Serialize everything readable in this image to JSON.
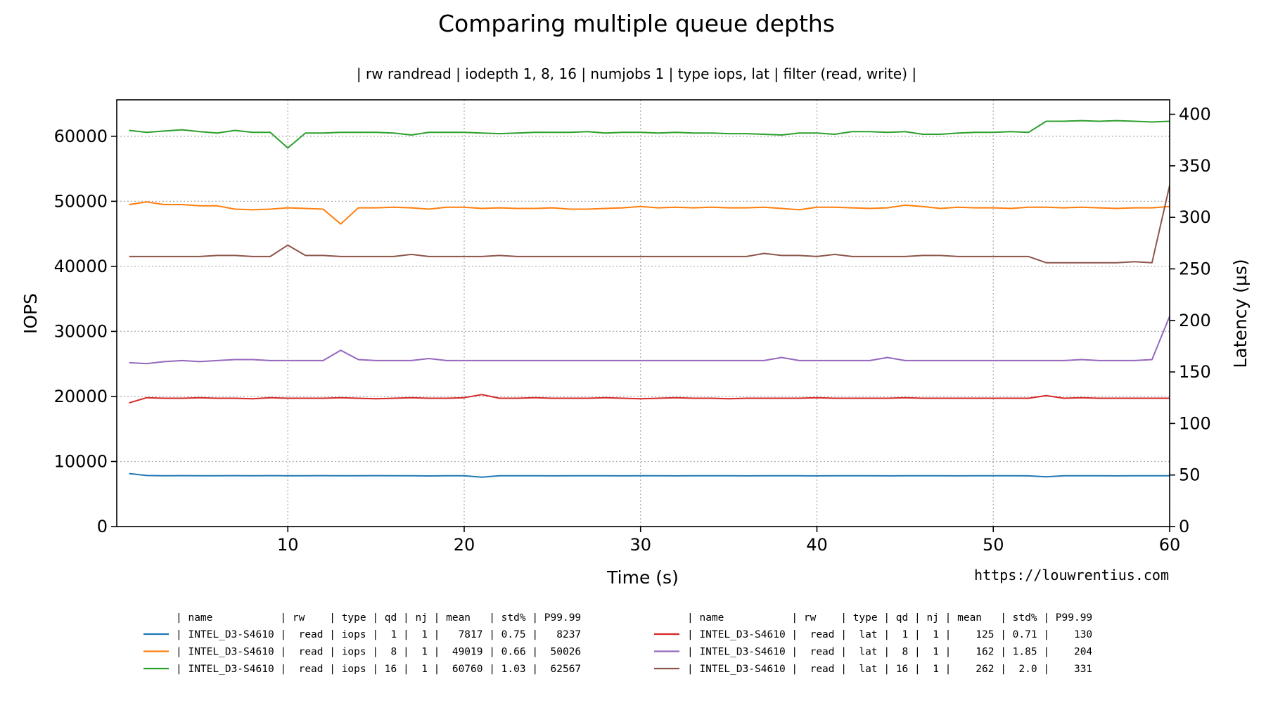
{
  "chart_data": {
    "type": "line",
    "title": "Comparing multiple queue depths",
    "subtitle": "| rw randread | iodepth 1, 8, 16 | numjobs 1 | type iops, lat | filter (read, write) |",
    "xlabel": "Time (s)",
    "ylabel": "IOPS",
    "ylabel_right": "Latency (µs)",
    "watermark": "https://louwrentius.com",
    "xlim": [
      0.3,
      60
    ],
    "ylim": [
      0,
      65600
    ],
    "ylim_right": [
      0,
      414
    ],
    "xticks": [
      "10",
      "20",
      "30",
      "40",
      "50",
      "60"
    ],
    "yticks": [
      "0",
      "10000",
      "20000",
      "30000",
      "40000",
      "50000",
      "60000"
    ],
    "yticks_right": [
      "0",
      "50",
      "100",
      "150",
      "200",
      "250",
      "300",
      "350",
      "400"
    ],
    "grid": true,
    "legend_placement": "bottom",
    "x": [
      1,
      2,
      3,
      4,
      5,
      6,
      7,
      8,
      9,
      10,
      11,
      12,
      13,
      14,
      15,
      16,
      17,
      18,
      19,
      20,
      21,
      22,
      23,
      24,
      25,
      26,
      27,
      28,
      29,
      30,
      31,
      32,
      33,
      34,
      35,
      36,
      37,
      38,
      39,
      40,
      41,
      42,
      43,
      44,
      45,
      46,
      47,
      48,
      49,
      50,
      51,
      52,
      53,
      54,
      55,
      56,
      57,
      58,
      59,
      60
    ],
    "legend_header": "| name           | rw    | type | qd | nj | mean   | std% | P99.99",
    "series": [
      {
        "name": "| INTEL_D3-S4610 |  read | iops |  1 |  1 |   7817 | 0.75 |   8237",
        "axis": "left",
        "color": "#1f77b4",
        "values": [
          8150,
          7850,
          7800,
          7820,
          7800,
          7810,
          7820,
          7800,
          7820,
          7810,
          7800,
          7820,
          7800,
          7810,
          7820,
          7800,
          7810,
          7780,
          7800,
          7810,
          7600,
          7800,
          7810,
          7800,
          7790,
          7800,
          7810,
          7800,
          7790,
          7810,
          7800,
          7790,
          7800,
          7810,
          7800,
          7790,
          7800,
          7810,
          7800,
          7790,
          7800,
          7810,
          7800,
          7790,
          7800,
          7810,
          7800,
          7790,
          7800,
          7810,
          7800,
          7790,
          7650,
          7800,
          7810,
          7800,
          7790,
          7800,
          7810,
          7800
        ]
      },
      {
        "name": "| INTEL_D3-S4610 |  read | iops |  8 |  1 |  49019 | 0.66 |  50026",
        "axis": "left",
        "color": "#ff7f0e",
        "values": [
          49500,
          49900,
          49500,
          49500,
          49300,
          49300,
          48800,
          48700,
          48800,
          49000,
          48900,
          48800,
          46500,
          49000,
          49000,
          49100,
          49000,
          48800,
          49100,
          49100,
          48900,
          49000,
          48900,
          48900,
          49000,
          48800,
          48800,
          48900,
          49000,
          49200,
          49000,
          49100,
          49000,
          49100,
          49000,
          49000,
          49100,
          48900,
          48700,
          49100,
          49100,
          49000,
          48900,
          49000,
          49400,
          49200,
          48900,
          49100,
          49000,
          49000,
          48900,
          49100,
          49100,
          49000,
          49100,
          49000,
          48900,
          49000,
          49000,
          49200
        ]
      },
      {
        "name": "| INTEL_D3-S4610 |  read | iops | 16 |  1 |  60760 | 1.03 |  62567",
        "axis": "left",
        "color": "#2ca02c",
        "values": [
          60900,
          60600,
          60800,
          61000,
          60700,
          60500,
          60900,
          60600,
          60600,
          58200,
          60500,
          60500,
          60600,
          60600,
          60600,
          60500,
          60200,
          60600,
          60600,
          60600,
          60500,
          60400,
          60500,
          60600,
          60600,
          60600,
          60700,
          60500,
          60600,
          60600,
          60500,
          60600,
          60500,
          60500,
          60400,
          60400,
          60300,
          60200,
          60500,
          60500,
          60300,
          60700,
          60700,
          60600,
          60700,
          60300,
          60300,
          60500,
          60600,
          60600,
          60700,
          60600,
          62300,
          62300,
          62400,
          62300,
          62400,
          62300,
          62200,
          62300
        ]
      },
      {
        "name": "| INTEL_D3-S4610 |  read |  lat |  1 |  1 |    125 | 0.71 |    130",
        "axis": "right",
        "color": "#d62728",
        "values": [
          120,
          125,
          124.5,
          124.5,
          125,
          124.5,
          124.5,
          124,
          125,
          124.5,
          124.5,
          124.5,
          125,
          124.5,
          124,
          124.5,
          125,
          124.5,
          124.5,
          125,
          128,
          124.5,
          124.5,
          125,
          124.5,
          124.5,
          124.5,
          125,
          124.5,
          124,
          124.5,
          125,
          124.5,
          124.5,
          124,
          124.5,
          124.5,
          124.5,
          124.5,
          125,
          124.5,
          124.5,
          124.5,
          124.5,
          125,
          124.5,
          124.5,
          124.5,
          124.5,
          124.5,
          124.5,
          124.5,
          127,
          124.5,
          125,
          124.5,
          124.5,
          124.5,
          124.5,
          124.5
        ]
      },
      {
        "name": "| INTEL_D3-S4610 |  read |  lat |  8 |  1 |    162 | 1.85 |    204",
        "axis": "right",
        "color": "#9467bd",
        "values": [
          159,
          158,
          160,
          161,
          160,
          161,
          162,
          162,
          161,
          161,
          161,
          161,
          171,
          162,
          161,
          161,
          161,
          163,
          161,
          161,
          161,
          161,
          161,
          161,
          161,
          161,
          161,
          161,
          161,
          161,
          161,
          161,
          161,
          161,
          161,
          161,
          161,
          164,
          161,
          161,
          161,
          161,
          161,
          164,
          161,
          161,
          161,
          161,
          161,
          161,
          161,
          161,
          161,
          161,
          162,
          161,
          161,
          161,
          162,
          204
        ]
      },
      {
        "name": "| INTEL_D3-S4610 |  read |  lat | 16 |  1 |    262 |  2.0 |    331",
        "axis": "right",
        "color": "#8c564b",
        "values": [
          262,
          262,
          262,
          262,
          262,
          263,
          263,
          262,
          262,
          273,
          263,
          263,
          262,
          262,
          262,
          262,
          264,
          262,
          262,
          262,
          262,
          263,
          262,
          262,
          262,
          262,
          262,
          262,
          262,
          262,
          262,
          262,
          262,
          262,
          262,
          262,
          265,
          263,
          263,
          262,
          264,
          262,
          262,
          262,
          262,
          263,
          263,
          262,
          262,
          262,
          262,
          262,
          256,
          256,
          256,
          256,
          256,
          257,
          256,
          331
        ]
      }
    ]
  }
}
